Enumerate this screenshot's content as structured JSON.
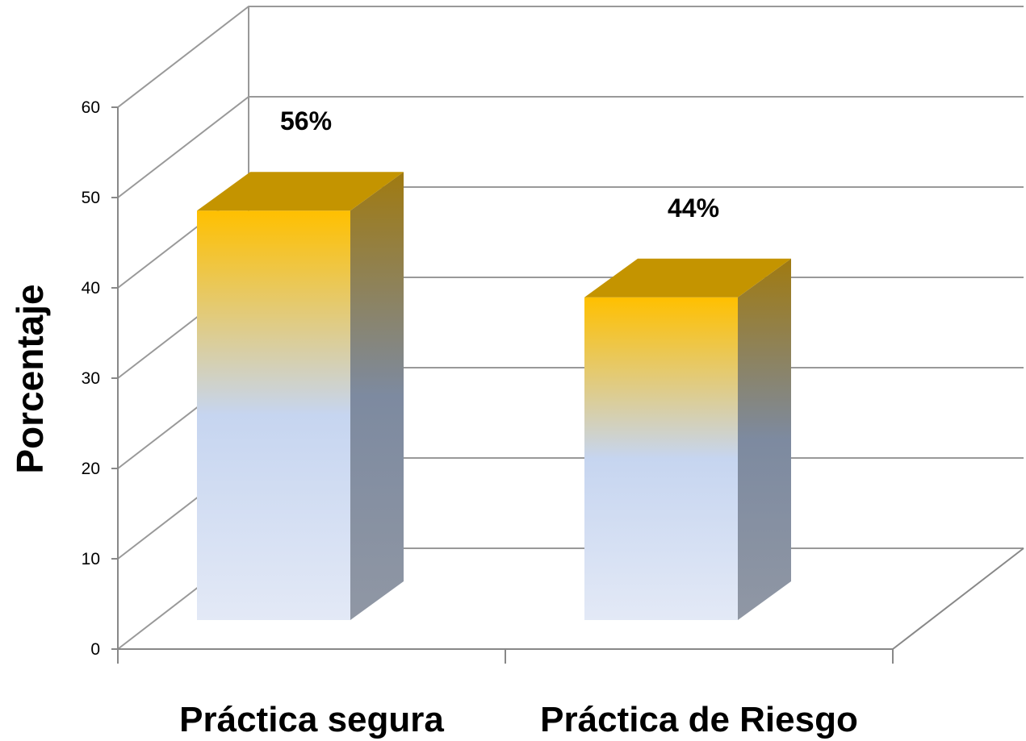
{
  "chart_data": {
    "type": "bar",
    "categories": [
      "Práctica segura",
      "Práctica de Riesgo"
    ],
    "values": [
      56,
      44
    ],
    "data_labels": [
      "56%",
      "44%"
    ],
    "title": "",
    "xlabel": "",
    "ylabel": "Porcentaje",
    "ylim": [
      0,
      60
    ],
    "yticks": [
      "0",
      "10",
      "20",
      "30",
      "40",
      "50",
      "60"
    ],
    "grid": true,
    "style": "3d-column",
    "colors": {
      "bar_top": "#ffc000",
      "bar_mid": "#c6d5f0",
      "bar_bottom": "#e3e9f6",
      "bar_roof": "#c49400",
      "bar_side_top": "#a07a10",
      "bar_side_bottom": "#9097a4",
      "grid": "#999999",
      "axis": "#888888"
    }
  }
}
